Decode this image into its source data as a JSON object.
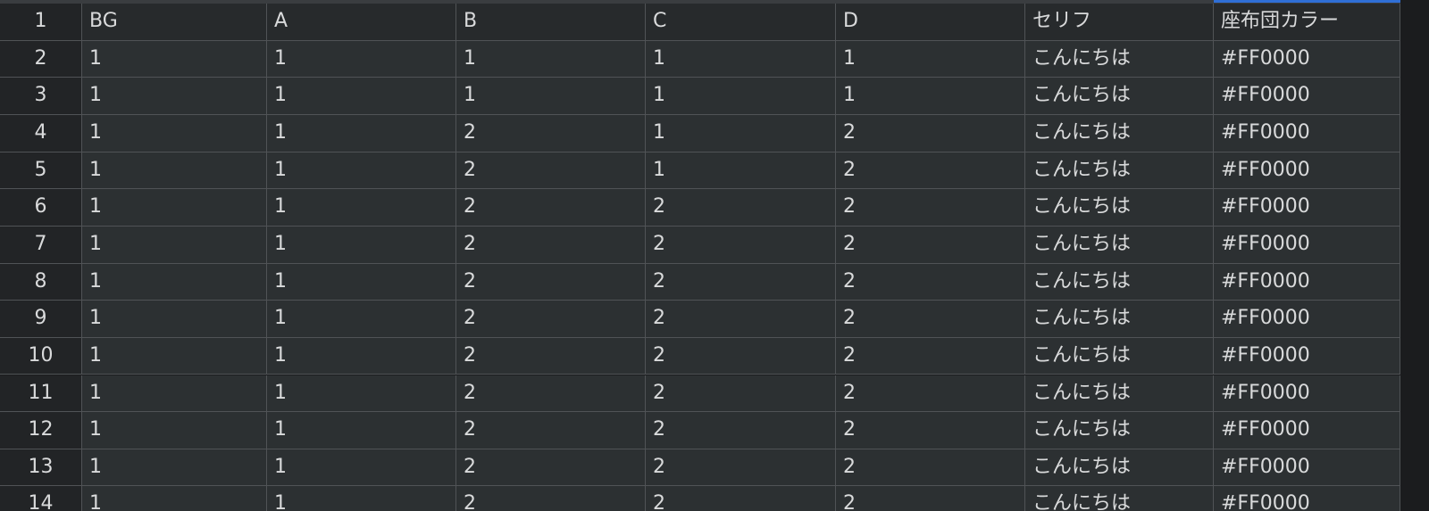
{
  "rows": [
    {
      "number": 1,
      "cells": [
        "BG",
        "A",
        "B",
        "C",
        "D",
        "セリフ",
        "座布団カラー"
      ]
    },
    {
      "number": 2,
      "cells": [
        "1",
        "1",
        "1",
        "1",
        "1",
        "こんにちは",
        "#FF0000"
      ]
    },
    {
      "number": 3,
      "cells": [
        "1",
        "1",
        "1",
        "1",
        "1",
        "こんにちは",
        "#FF0000"
      ]
    },
    {
      "number": 4,
      "cells": [
        "1",
        "1",
        "2",
        "1",
        "2",
        "こんにちは",
        "#FF0000"
      ]
    },
    {
      "number": 5,
      "cells": [
        "1",
        "1",
        "2",
        "1",
        "2",
        "こんにちは",
        "#FF0000"
      ]
    },
    {
      "number": 6,
      "cells": [
        "1",
        "1",
        "2",
        "2",
        "2",
        "こんにちは",
        "#FF0000"
      ]
    },
    {
      "number": 7,
      "cells": [
        "1",
        "1",
        "2",
        "2",
        "2",
        "こんにちは",
        "#FF0000"
      ]
    },
    {
      "number": 8,
      "cells": [
        "1",
        "1",
        "2",
        "2",
        "2",
        "こんにちは",
        "#FF0000"
      ]
    },
    {
      "number": 9,
      "cells": [
        "1",
        "1",
        "2",
        "2",
        "2",
        "こんにちは",
        "#FF0000"
      ]
    },
    {
      "number": 10,
      "cells": [
        "1",
        "1",
        "2",
        "2",
        "2",
        "こんにちは",
        "#FF0000"
      ]
    },
    {
      "number": 11,
      "cells": [
        "1",
        "1",
        "2",
        "2",
        "2",
        "こんにちは",
        "#FF0000"
      ]
    },
    {
      "number": 12,
      "cells": [
        "1",
        "1",
        "2",
        "2",
        "2",
        "こんにちは",
        "#FF0000"
      ]
    },
    {
      "number": 13,
      "cells": [
        "1",
        "1",
        "2",
        "2",
        "2",
        "こんにちは",
        "#FF0000"
      ]
    },
    {
      "number": 14,
      "cells": [
        "1",
        "1",
        "2",
        "2",
        "2",
        "こんにちは",
        "#FF0000"
      ]
    }
  ]
}
